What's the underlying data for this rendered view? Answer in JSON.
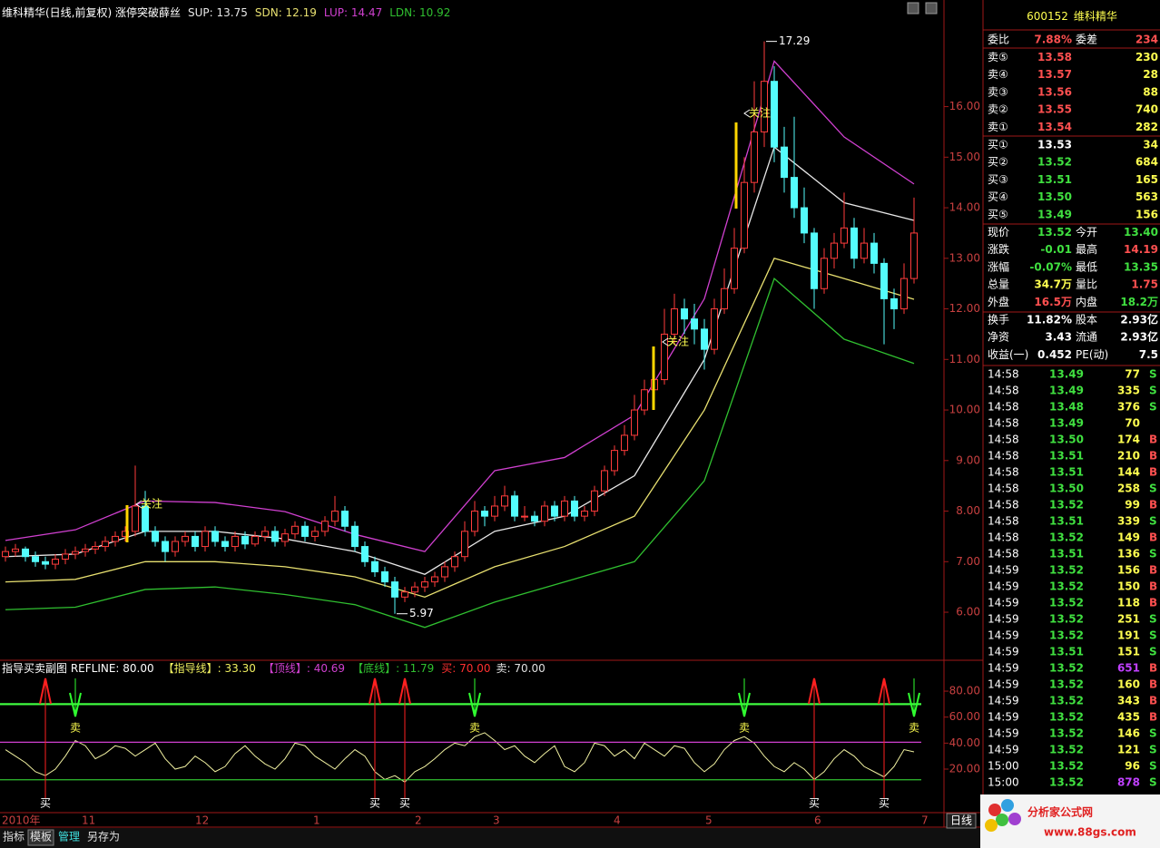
{
  "chart_data": [
    {
      "type": "candlestick",
      "title": "维科精华(日线,前复权) 涨停突破薛丝",
      "ylim": [
        5.05,
        17.75
      ],
      "yticks": [
        {
          "value": 6,
          "label": "6.00"
        },
        {
          "value": 7,
          "label": "7.00"
        },
        {
          "value": 8,
          "label": "8.00"
        },
        {
          "value": 9,
          "label": "9.00"
        },
        {
          "value": 10,
          "label": "10.00"
        },
        {
          "value": 11,
          "label": "11.00"
        },
        {
          "value": 12,
          "label": "12.00"
        },
        {
          "value": 13,
          "label": "13.00"
        },
        {
          "value": 14,
          "label": "14.00"
        },
        {
          "value": 15,
          "label": "15.00"
        },
        {
          "value": 16,
          "label": "16.00"
        }
      ],
      "x_labels": [
        "2010年",
        "11",
        "12",
        "1",
        "2",
        "3",
        "4",
        "5",
        "6",
        "7"
      ],
      "up_color": "#ff3c3c",
      "down_color": "#54fcfc",
      "candles": [
        [
          7.1,
          7.3,
          7.0,
          7.2
        ],
        [
          7.2,
          7.35,
          7.1,
          7.25
        ],
        [
          7.25,
          7.3,
          7.0,
          7.1
        ],
        [
          7.1,
          7.2,
          6.9,
          7.0
        ],
        [
          7.0,
          7.1,
          6.85,
          6.95
        ],
        [
          6.95,
          7.15,
          6.85,
          7.05
        ],
        [
          7.05,
          7.25,
          6.95,
          7.15
        ],
        [
          7.15,
          7.3,
          7.05,
          7.2
        ],
        [
          7.2,
          7.35,
          7.1,
          7.25
        ],
        [
          7.25,
          7.4,
          7.15,
          7.3
        ],
        [
          7.3,
          7.5,
          7.2,
          7.4
        ],
        [
          7.4,
          7.6,
          7.3,
          7.5
        ],
        [
          7.5,
          7.7,
          7.4,
          7.6
        ],
        [
          7.6,
          8.9,
          7.5,
          8.1
        ],
        [
          8.1,
          8.4,
          7.5,
          7.6
        ],
        [
          7.6,
          7.7,
          7.3,
          7.4
        ],
        [
          7.4,
          7.5,
          7.0,
          7.2
        ],
        [
          7.2,
          7.5,
          7.1,
          7.4
        ],
        [
          7.4,
          7.6,
          7.3,
          7.5
        ],
        [
          7.5,
          7.6,
          7.2,
          7.3
        ],
        [
          7.3,
          7.7,
          7.2,
          7.6
        ],
        [
          7.6,
          7.7,
          7.3,
          7.4
        ],
        [
          7.4,
          7.5,
          7.2,
          7.3
        ],
        [
          7.3,
          7.6,
          7.2,
          7.5
        ],
        [
          7.5,
          7.6,
          7.25,
          7.35
        ],
        [
          7.35,
          7.6,
          7.3,
          7.5
        ],
        [
          7.5,
          7.7,
          7.4,
          7.6
        ],
        [
          7.6,
          7.7,
          7.3,
          7.4
        ],
        [
          7.4,
          7.65,
          7.3,
          7.55
        ],
        [
          7.55,
          7.8,
          7.45,
          7.7
        ],
        [
          7.7,
          7.8,
          7.4,
          7.5
        ],
        [
          7.5,
          7.7,
          7.4,
          7.6
        ],
        [
          7.6,
          7.9,
          7.5,
          7.8
        ],
        [
          7.8,
          8.3,
          7.7,
          8.0
        ],
        [
          8.0,
          8.1,
          7.6,
          7.7
        ],
        [
          7.7,
          7.8,
          7.2,
          7.3
        ],
        [
          7.3,
          7.4,
          6.9,
          7.0
        ],
        [
          7.0,
          7.1,
          6.7,
          6.8
        ],
        [
          6.8,
          6.9,
          6.5,
          6.6
        ],
        [
          6.6,
          6.7,
          5.97,
          6.3
        ],
        [
          6.3,
          6.5,
          6.2,
          6.4
        ],
        [
          6.4,
          6.6,
          6.3,
          6.5
        ],
        [
          6.5,
          6.7,
          6.4,
          6.6
        ],
        [
          6.6,
          6.8,
          6.5,
          6.7
        ],
        [
          6.7,
          7.0,
          6.6,
          6.9
        ],
        [
          6.9,
          7.2,
          6.8,
          7.1
        ],
        [
          7.1,
          7.8,
          7.0,
          7.6
        ],
        [
          7.6,
          8.2,
          7.5,
          8.0
        ],
        [
          8.0,
          8.1,
          7.7,
          7.9
        ],
        [
          7.9,
          8.3,
          7.8,
          8.1
        ],
        [
          8.1,
          8.5,
          8.0,
          8.3
        ],
        [
          8.3,
          8.4,
          7.8,
          7.9
        ],
        [
          7.9,
          8.1,
          7.8,
          7.9
        ],
        [
          7.9,
          8.0,
          7.7,
          7.8
        ],
        [
          7.8,
          8.2,
          7.7,
          8.1
        ],
        [
          8.1,
          8.2,
          7.8,
          7.9
        ],
        [
          7.9,
          8.3,
          7.8,
          8.2
        ],
        [
          8.2,
          8.3,
          7.8,
          7.9
        ],
        [
          7.9,
          8.1,
          7.8,
          8.0
        ],
        [
          8.0,
          8.5,
          7.9,
          8.4
        ],
        [
          8.4,
          8.9,
          8.3,
          8.8
        ],
        [
          8.8,
          9.3,
          8.7,
          9.2
        ],
        [
          9.2,
          9.7,
          9.1,
          9.5
        ],
        [
          9.5,
          10.3,
          9.4,
          10.0
        ],
        [
          10.0,
          10.6,
          9.9,
          10.4
        ],
        [
          10.4,
          10.9,
          10.0,
          10.6
        ],
        [
          10.6,
          12.0,
          10.5,
          11.5
        ],
        [
          11.5,
          12.3,
          11.3,
          12.0
        ],
        [
          12.0,
          12.2,
          11.5,
          11.8
        ],
        [
          11.8,
          12.1,
          11.3,
          11.6
        ],
        [
          11.6,
          11.8,
          10.8,
          11.2
        ],
        [
          11.2,
          12.2,
          11.1,
          12.0
        ],
        [
          12.0,
          12.8,
          11.9,
          12.4
        ],
        [
          12.4,
          13.6,
          12.3,
          13.2
        ],
        [
          13.2,
          15.0,
          13.1,
          14.5
        ],
        [
          14.5,
          16.5,
          14.3,
          15.5
        ],
        [
          15.5,
          17.29,
          15.2,
          16.5
        ],
        [
          16.5,
          16.8,
          14.9,
          15.2
        ],
        [
          15.2,
          15.6,
          14.3,
          14.6
        ],
        [
          14.6,
          15.8,
          13.8,
          14.0
        ],
        [
          14.0,
          14.4,
          13.3,
          13.5
        ],
        [
          13.5,
          13.6,
          12.0,
          12.4
        ],
        [
          12.4,
          13.2,
          12.3,
          13.0
        ],
        [
          13.0,
          13.5,
          12.8,
          13.3
        ],
        [
          13.3,
          14.3,
          13.2,
          13.6
        ],
        [
          13.6,
          13.8,
          12.8,
          13.0
        ],
        [
          13.0,
          13.6,
          12.9,
          13.3
        ],
        [
          13.3,
          13.5,
          12.7,
          12.9
        ],
        [
          12.9,
          13.0,
          11.3,
          12.2
        ],
        [
          12.2,
          12.4,
          11.6,
          12.0
        ],
        [
          12.0,
          12.9,
          11.9,
          12.6
        ],
        [
          12.6,
          14.2,
          12.5,
          13.5
        ]
      ],
      "band_x": [
        0,
        7,
        14,
        21,
        28,
        35,
        42,
        49,
        56,
        63,
        70,
        77,
        84,
        91
      ],
      "series": [
        {
          "label": "SUP: 13.75",
          "color": "#e8e8e8",
          "values": [
            7.1,
            7.15,
            7.6,
            7.6,
            7.45,
            7.2,
            6.75,
            7.6,
            7.9,
            8.7,
            11.0,
            15.2,
            14.1,
            13.75
          ]
        },
        {
          "label": "SDN: 12.19",
          "color": "#e8e070",
          "values": [
            6.6,
            6.65,
            7.0,
            7.0,
            6.9,
            6.7,
            6.3,
            6.9,
            7.3,
            7.9,
            10.0,
            13.0,
            12.6,
            12.19
          ]
        },
        {
          "label": "LUP: 14.47",
          "color": "#d040d0",
          "values": [
            7.42,
            7.63,
            8.2,
            8.17,
            7.99,
            7.54,
            7.2,
            8.8,
            9.06,
            9.9,
            12.2,
            16.9,
            15.4,
            14.47
          ]
        },
        {
          "label": "LDN: 10.92",
          "color": "#30c030",
          "values": [
            6.05,
            6.1,
            6.45,
            6.5,
            6.35,
            6.15,
            5.7,
            6.2,
            6.6,
            7.0,
            8.6,
            12.6,
            11.4,
            10.92
          ]
        }
      ],
      "max_label": 17.29,
      "min_label": 5.97,
      "annotations": [
        "关注",
        "关注",
        "关注"
      ]
    },
    {
      "type": "line",
      "title": "指导买卖副图  REFLINE: 80.00",
      "ylim": [
        -11.4,
        91.9
      ],
      "yticks": [
        {
          "value": 20,
          "label": "20.00"
        },
        {
          "value": 40,
          "label": "40.00"
        },
        {
          "value": 60,
          "label": "60.00"
        },
        {
          "value": 80,
          "label": "80.00"
        }
      ],
      "signal_line_color": "#40ff40",
      "series": [
        {
          "label": "【指导线】: 33.30",
          "color": "#f0f0a0",
          "values": [
            35,
            30,
            25,
            18,
            15,
            20,
            30,
            42,
            38,
            28,
            32,
            38,
            36,
            30,
            35,
            40,
            28,
            20,
            22,
            30,
            25,
            18,
            22,
            32,
            38,
            30,
            24,
            20,
            28,
            40,
            38,
            30,
            25,
            20,
            28,
            35,
            30,
            18,
            12,
            15,
            10,
            18,
            22,
            28,
            35,
            40,
            38,
            45,
            48,
            42,
            35,
            38,
            30,
            25,
            32,
            38,
            22,
            18,
            25,
            40,
            38,
            30,
            35,
            28,
            40,
            35,
            30,
            38,
            36,
            25,
            18,
            24,
            35,
            42,
            45,
            40,
            30,
            22,
            18,
            25,
            20,
            12,
            18,
            28,
            35,
            30,
            22,
            18,
            14,
            22,
            35,
            33.3
          ]
        },
        {
          "label": "【顶线】: 40.69",
          "color": "#d040d0",
          "value": 40.69
        },
        {
          "label": "【底线】: 11.79",
          "color": "#30c030",
          "value": 11.79
        },
        {
          "label": "买: 70.00",
          "color": "#ff3030",
          "value": 70
        },
        {
          "label": "卖: 70.00",
          "color": "#e0e0e0",
          "value": 70
        }
      ],
      "buy_signals": {
        "label": "买",
        "index": [
          4,
          37,
          40,
          81,
          88
        ]
      },
      "sell_signals": {
        "label": "卖",
        "index": [
          7,
          47,
          74,
          91
        ]
      }
    }
  ],
  "quote": {
    "code": "600152",
    "name": "维科精华",
    "rows": [
      {
        "cells": [
          "委比",
          "7.88%",
          "委差",
          "234"
        ],
        "colors": [
          "#ff5050",
          "#ff5050"
        ]
      },
      {
        "cells": [
          "卖⑤",
          "13.58",
          "230"
        ],
        "colors": [
          "#ff5050",
          "#ffff50"
        ]
      },
      {
        "cells": [
          "卖④",
          "13.57",
          "28"
        ],
        "colors": [
          "#ff5050",
          "#ffff50"
        ]
      },
      {
        "cells": [
          "卖③",
          "13.56",
          "88"
        ],
        "colors": [
          "#ff5050",
          "#ffff50"
        ]
      },
      {
        "cells": [
          "卖②",
          "13.55",
          "740"
        ],
        "colors": [
          "#ff5050",
          "#ffff50"
        ]
      },
      {
        "cells": [
          "卖①",
          "13.54",
          "282"
        ],
        "colors": [
          "#ff5050",
          "#ffff50"
        ]
      },
      {
        "cells": [
          "买①",
          "13.53",
          "34"
        ],
        "colors": [
          "#ffffff",
          "#ffff50"
        ]
      },
      {
        "cells": [
          "买②",
          "13.52",
          "684"
        ],
        "colors": [
          "#40e040",
          "#ffff50"
        ]
      },
      {
        "cells": [
          "买③",
          "13.51",
          "165"
        ],
        "colors": [
          "#40e040",
          "#ffff50"
        ]
      },
      {
        "cells": [
          "买④",
          "13.50",
          "563"
        ],
        "colors": [
          "#40e040",
          "#ffff50"
        ]
      },
      {
        "cells": [
          "买⑤",
          "13.49",
          "156"
        ],
        "colors": [
          "#40e040",
          "#ffff50"
        ]
      },
      {
        "cells": [
          "现价",
          "13.52",
          "今开",
          "13.40"
        ],
        "colors": [
          "#40e040",
          "#40e040"
        ]
      },
      {
        "cells": [
          "涨跌",
          "-0.01",
          "最高",
          "14.19"
        ],
        "colors": [
          "#40e040",
          "#ff5050"
        ]
      },
      {
        "cells": [
          "涨幅",
          "-0.07%",
          "最低",
          "13.35"
        ],
        "colors": [
          "#40e040",
          "#40e040"
        ]
      },
      {
        "cells": [
          "总量",
          "34.7万",
          "量比",
          "1.75"
        ],
        "colors": [
          "#ffff50",
          "#ff5050"
        ]
      },
      {
        "cells": [
          "外盘",
          "16.5万",
          "内盘",
          "18.2万"
        ],
        "colors": [
          "#ff5050",
          "#40e040"
        ]
      },
      {
        "cells": [
          "换手",
          "11.82%",
          "股本",
          "2.93亿"
        ],
        "colors": [
          "#ffffff",
          "#ffffff"
        ]
      },
      {
        "cells": [
          "净资",
          "3.43",
          "流通",
          "2.93亿"
        ],
        "colors": [
          "#ffffff",
          "#ffffff"
        ]
      },
      {
        "cells": [
          "收益(一)",
          "0.452",
          "PE(动)",
          "7.5"
        ],
        "colors": [
          "#ffffff",
          "#ffffff"
        ]
      }
    ],
    "ticks": [
      [
        "14:58",
        "13.49",
        "77",
        "S"
      ],
      [
        "14:58",
        "13.49",
        "335",
        "S"
      ],
      [
        "14:58",
        "13.48",
        "376",
        "S"
      ],
      [
        "14:58",
        "13.49",
        "70"
      ],
      [
        "14:58",
        "13.50",
        "174",
        "B"
      ],
      [
        "14:58",
        "13.51",
        "210",
        "B"
      ],
      [
        "14:58",
        "13.51",
        "144",
        "B"
      ],
      [
        "14:58",
        "13.50",
        "258",
        "S"
      ],
      [
        "14:58",
        "13.52",
        "99",
        "B"
      ],
      [
        "14:58",
        "13.51",
        "339",
        "S"
      ],
      [
        "14:58",
        "13.52",
        "149",
        "B"
      ],
      [
        "14:58",
        "13.51",
        "136",
        "S"
      ],
      [
        "14:59",
        "13.52",
        "156",
        "B"
      ],
      [
        "14:59",
        "13.52",
        "150",
        "B"
      ],
      [
        "14:59",
        "13.52",
        "118",
        "B"
      ],
      [
        "14:59",
        "13.52",
        "251",
        "S"
      ],
      [
        "14:59",
        "13.52",
        "191",
        "S"
      ],
      [
        "14:59",
        "13.51",
        "151",
        "S"
      ],
      [
        "14:59",
        "13.52",
        "651",
        "B"
      ],
      [
        "14:59",
        "13.52",
        "160",
        "B"
      ],
      [
        "14:59",
        "13.52",
        "343",
        "B"
      ],
      [
        "14:59",
        "13.52",
        "435",
        "B"
      ],
      [
        "14:59",
        "13.52",
        "146",
        "S"
      ],
      [
        "14:59",
        "13.52",
        "121",
        "S"
      ],
      [
        "15:00",
        "13.52",
        "96",
        "S"
      ],
      [
        "15:00",
        "13.52",
        "878",
        "S"
      ]
    ]
  },
  "toolbar": [
    "指标",
    "模板",
    "管理",
    "另存为"
  ],
  "period": "日线",
  "watermark": {
    "title": "分析家公式网",
    "url": "www.88gs.com"
  }
}
